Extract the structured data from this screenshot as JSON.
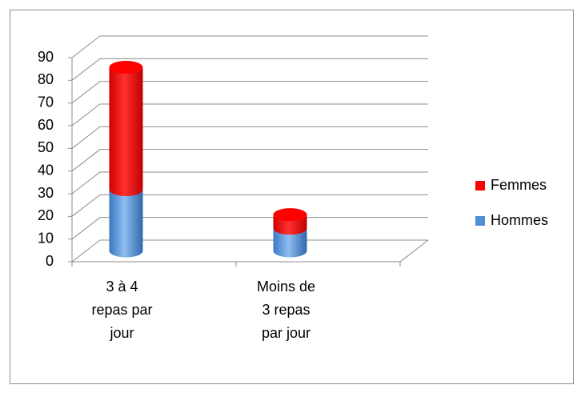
{
  "chart_data": {
    "type": "bar3d_stacked_cylinder",
    "categories": [
      "3 à 4 repas par jour",
      "Moins de 3 repas par jour"
    ],
    "series": [
      {
        "name": "Hommes",
        "color": "#4f8fd6",
        "values": [
          27,
          10
        ]
      },
      {
        "name": "Femmes",
        "color": "#ff0000",
        "values": [
          54,
          6
        ]
      }
    ],
    "ylim": [
      0,
      90
    ],
    "yticks": [
      0,
      10,
      20,
      30,
      40,
      50,
      60,
      70,
      80,
      90
    ],
    "grid": true,
    "legend": "right"
  }
}
